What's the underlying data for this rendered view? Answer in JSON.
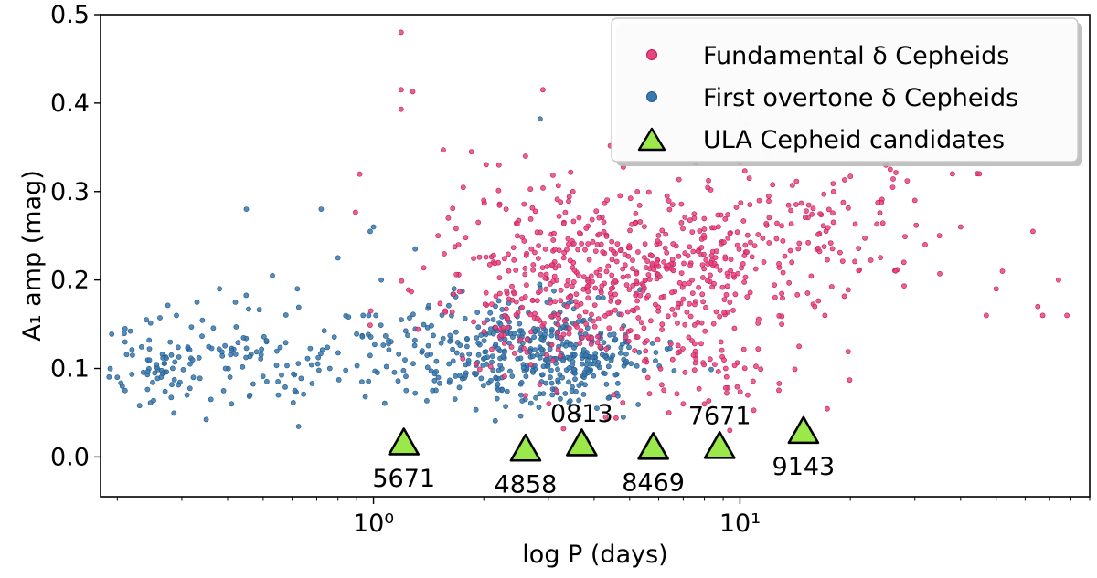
{
  "chart_data": {
    "type": "scatter",
    "xscale": "log",
    "xlim": [
      0.18,
      90
    ],
    "ylim": [
      -0.045,
      0.5
    ],
    "xlabel": "log P (days)",
    "ylabel": "A₁ amp (mag)",
    "xticks": [
      {
        "value": 1,
        "label": "10⁰"
      },
      {
        "value": 10,
        "label": "10¹"
      }
    ],
    "yticks": [
      {
        "value": 0.0,
        "label": "0.0"
      },
      {
        "value": 0.1,
        "label": "0.1"
      },
      {
        "value": 0.2,
        "label": "0.2"
      },
      {
        "value": 0.3,
        "label": "0.3"
      },
      {
        "value": 0.4,
        "label": "0.4"
      },
      {
        "value": 0.5,
        "label": "0.5"
      }
    ],
    "legend_position": "top-right",
    "series": [
      {
        "name": "Fundamental δ Cepheids",
        "marker": "circle",
        "color": "#e8457c",
        "edge": "#c2185b",
        "points": [
          [
            1.19,
            0.48
          ],
          [
            1.19,
            0.415
          ],
          [
            1.28,
            0.413
          ],
          [
            1.19,
            0.393
          ],
          [
            2.9,
            0.415
          ],
          [
            3.5,
            0.3
          ],
          [
            2.6,
            0.34
          ],
          [
            1.55,
            0.347
          ],
          [
            1.85,
            0.345
          ],
          [
            2.2,
            0.33
          ],
          [
            2.0,
            0.29
          ],
          [
            2.3,
            0.28
          ],
          [
            1.6,
            0.27
          ],
          [
            1.5,
            0.25
          ],
          [
            9.5,
            0.36
          ],
          [
            10.0,
            0.385
          ],
          [
            14.0,
            0.37
          ],
          [
            20.0,
            0.35
          ],
          [
            25.0,
            0.33
          ],
          [
            38.0,
            0.32
          ],
          [
            12.0,
            0.34
          ],
          [
            18.0,
            0.3
          ],
          [
            30.0,
            0.29
          ],
          [
            45.0,
            0.32
          ],
          [
            40.0,
            0.26
          ],
          [
            28.0,
            0.22
          ],
          [
            32.0,
            0.24
          ],
          [
            35.0,
            0.25
          ],
          [
            52.0,
            0.21
          ],
          [
            63.0,
            0.255
          ],
          [
            65.0,
            0.17
          ],
          [
            67.0,
            0.16
          ],
          [
            74.0,
            0.2
          ],
          [
            78.0,
            0.16
          ],
          [
            50.0,
            0.19
          ],
          [
            47.0,
            0.16
          ],
          [
            16.0,
            0.17
          ],
          [
            13.0,
            0.15
          ],
          [
            14.5,
            0.125
          ],
          [
            9.2,
            0.072
          ],
          [
            10.5,
            0.07
          ],
          [
            8.0,
            0.06
          ],
          [
            7.0,
            0.06
          ],
          [
            6.4,
            0.05
          ],
          [
            3.3,
            0.032
          ],
          [
            4.3,
            0.045
          ]
        ],
        "clusters": [
          {
            "x0": 4.3,
            "sx": 0.24,
            "y0": 0.205,
            "sy": 0.05,
            "n": 380
          },
          {
            "x0": 6.0,
            "sx": 0.25,
            "y0": 0.19,
            "sy": 0.055,
            "n": 170
          },
          {
            "x0": 13.0,
            "sx": 0.2,
            "y0": 0.27,
            "sy": 0.045,
            "n": 130
          },
          {
            "x0": 3.0,
            "sx": 0.14,
            "y0": 0.16,
            "sy": 0.04,
            "n": 40
          },
          {
            "x0": 8.5,
            "sx": 0.12,
            "y0": 0.1,
            "sy": 0.022,
            "n": 35
          }
        ]
      },
      {
        "name": "First overtone δ Cepheids",
        "marker": "circle",
        "color": "#3a78ae",
        "edge": "#1f5a8a",
        "points": [
          [
            2.85,
            0.382
          ],
          [
            0.45,
            0.28
          ],
          [
            0.72,
            0.28
          ],
          [
            1.0,
            0.26
          ],
          [
            0.98,
            0.255
          ],
          [
            1.3,
            0.235
          ],
          [
            0.8,
            0.225
          ],
          [
            1.05,
            0.2
          ],
          [
            0.38,
            0.19
          ],
          [
            0.53,
            0.205
          ],
          [
            0.42,
            0.175
          ],
          [
            0.62,
            0.19
          ],
          [
            0.24,
            0.155
          ],
          [
            0.33,
            0.175
          ],
          [
            0.29,
            0.16
          ],
          [
            0.21,
            0.145
          ],
          [
            0.21,
            0.13
          ],
          [
            0.22,
            0.115
          ],
          [
            0.2,
            0.09
          ],
          [
            0.21,
            0.075
          ],
          [
            0.23,
            0.058
          ],
          [
            0.27,
            0.074
          ],
          [
            0.31,
            0.07
          ],
          [
            0.36,
            0.065
          ],
          [
            0.41,
            0.06
          ],
          [
            0.46,
            0.07
          ],
          [
            0.55,
            0.07
          ],
          [
            0.61,
            0.075
          ],
          [
            0.68,
            0.083
          ],
          [
            0.71,
            0.098
          ],
          [
            0.76,
            0.1
          ],
          [
            0.84,
            0.098
          ],
          [
            0.93,
            0.085
          ],
          [
            0.95,
            0.068
          ],
          [
            1.3,
            0.072
          ],
          [
            1.45,
            0.075
          ]
        ],
        "clusters": [
          {
            "x0": 0.26,
            "sx": 0.1,
            "y0": 0.105,
            "sy": 0.022,
            "n": 70
          },
          {
            "x0": 0.5,
            "sx": 0.13,
            "y0": 0.12,
            "sy": 0.028,
            "n": 70
          },
          {
            "x0": 1.15,
            "sx": 0.14,
            "y0": 0.12,
            "sy": 0.03,
            "n": 60
          },
          {
            "x0": 2.4,
            "sx": 0.14,
            "y0": 0.115,
            "sy": 0.032,
            "n": 230
          },
          {
            "x0": 3.2,
            "sx": 0.12,
            "y0": 0.125,
            "sy": 0.025,
            "n": 140
          },
          {
            "x0": 4.3,
            "sx": 0.09,
            "y0": 0.1,
            "sy": 0.022,
            "n": 40
          }
        ]
      },
      {
        "name": "ULA Cepheid candidates",
        "marker": "triangle",
        "color": "#9be84a",
        "edge": "#000000",
        "points": [
          {
            "x": 1.21,
            "y": 0.014,
            "label": "5671",
            "label_pos": "below"
          },
          {
            "x": 2.6,
            "y": 0.007,
            "label": "4858",
            "label_pos": "below"
          },
          {
            "x": 3.7,
            "y": 0.013,
            "label": "0813",
            "label_pos": "above"
          },
          {
            "x": 5.8,
            "y": 0.009,
            "label": "8469",
            "label_pos": "below"
          },
          {
            "x": 8.8,
            "y": 0.01,
            "label": "7671",
            "label_pos": "above"
          },
          {
            "x": 14.9,
            "y": 0.027,
            "label": "9143",
            "label_pos": "below"
          }
        ]
      }
    ]
  }
}
